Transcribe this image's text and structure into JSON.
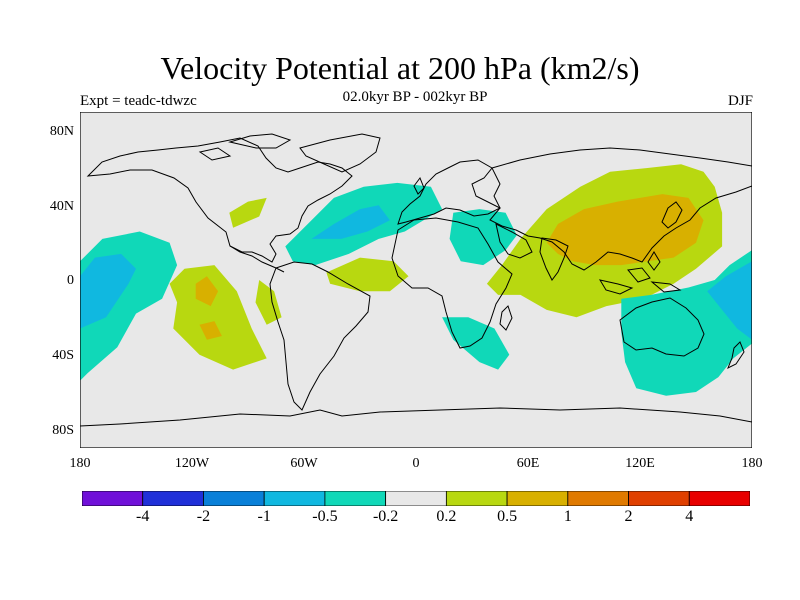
{
  "title": "Velocity Potential at 200 hPa (km2/s)",
  "subtitle": "02.0kyr BP - 002kyr BP",
  "experiment": "Expt = teadc-tdwzc",
  "season": "DJF",
  "map": {
    "projection": "cylindrical-equidistant",
    "lon_range": [
      -180,
      180
    ],
    "lat_range": [
      -90,
      90
    ],
    "background_color": "#e8e8e8",
    "coastline_color": "#000000",
    "lat_ticks": [
      {
        "value": 80,
        "label": "80N"
      },
      {
        "value": 40,
        "label": "40N"
      },
      {
        "value": 0,
        "label": "0"
      },
      {
        "value": -40,
        "label": "40S"
      },
      {
        "value": -80,
        "label": "80S"
      }
    ],
    "lon_ticks": [
      {
        "value": -180,
        "label": "180"
      },
      {
        "value": -120,
        "label": "120W"
      },
      {
        "value": -60,
        "label": "60W"
      },
      {
        "value": 0,
        "label": "0"
      },
      {
        "value": 60,
        "label": "60E"
      },
      {
        "value": 120,
        "label": "120E"
      },
      {
        "value": 180,
        "label": "180"
      }
    ]
  },
  "colorbar": {
    "colors": [
      "#7010d8",
      "#2030d8",
      "#0a80d8",
      "#10b8e0",
      "#10d8b8",
      "#e8e8e8",
      "#b8d810",
      "#d8b000",
      "#e07a00",
      "#e04000",
      "#e80000"
    ],
    "labels": [
      "-4",
      "-2",
      "-1",
      "-0.5",
      "-0.2",
      "0.2",
      "0.5",
      "1",
      "2",
      "4"
    ]
  },
  "chart_data": {
    "type": "heatmap",
    "title": "Velocity Potential at 200 hPa (km2/s)",
    "variable": "velocity potential difference",
    "units": "km2/s",
    "levels": [
      -4,
      -2,
      -1,
      -0.5,
      -0.2,
      0.2,
      0.5,
      1,
      2,
      4
    ],
    "regions": [
      {
        "name": "",
        "class": 4,
        "points": [
          [
            -180,
            10
          ],
          [
            -168,
            22
          ],
          [
            -148,
            26
          ],
          [
            -132,
            20
          ],
          [
            -128,
            8
          ],
          [
            -136,
            -10
          ],
          [
            -150,
            -18
          ],
          [
            -160,
            -36
          ],
          [
            -176,
            -50
          ],
          [
            -180,
            -54
          ]
        ]
      },
      {
        "name": "",
        "class": 3,
        "points": [
          [
            -180,
            2
          ],
          [
            -172,
            12
          ],
          [
            -158,
            14
          ],
          [
            -150,
            6
          ],
          [
            -154,
            -2
          ],
          [
            -166,
            -20
          ],
          [
            -180,
            -26
          ]
        ]
      },
      {
        "name": "",
        "class": 6,
        "points": [
          [
            -132,
            -2
          ],
          [
            -124,
            6
          ],
          [
            -108,
            8
          ],
          [
            -96,
            -6
          ],
          [
            -88,
            -26
          ],
          [
            -80,
            -42
          ],
          [
            -98,
            -48
          ],
          [
            -116,
            -40
          ],
          [
            -130,
            -26
          ],
          [
            -128,
            -12
          ]
        ]
      },
      {
        "name": "",
        "class": 7,
        "points": [
          [
            -118,
            -2
          ],
          [
            -112,
            2
          ],
          [
            -106,
            -6
          ],
          [
            -110,
            -14
          ],
          [
            -118,
            -10
          ]
        ]
      },
      {
        "name": "",
        "class": 7,
        "points": [
          [
            -116,
            -24
          ],
          [
            -108,
            -22
          ],
          [
            -104,
            -30
          ],
          [
            -112,
            -32
          ]
        ]
      },
      {
        "name": "",
        "class": 6,
        "points": [
          [
            -84,
            0
          ],
          [
            -76,
            -6
          ],
          [
            -72,
            -20
          ],
          [
            -80,
            -24
          ],
          [
            -86,
            -12
          ]
        ]
      },
      {
        "name": "",
        "class": 6,
        "points": [
          [
            -100,
            36
          ],
          [
            -90,
            42
          ],
          [
            -80,
            44
          ],
          [
            -84,
            34
          ],
          [
            -98,
            28
          ]
        ]
      },
      {
        "name": "",
        "class": 4,
        "points": [
          [
            -70,
            18
          ],
          [
            -56,
            32
          ],
          [
            -44,
            44
          ],
          [
            -28,
            50
          ],
          [
            -10,
            52
          ],
          [
            8,
            50
          ],
          [
            14,
            38
          ],
          [
            -6,
            26
          ],
          [
            -20,
            22
          ],
          [
            -36,
            14
          ],
          [
            -54,
            8
          ],
          [
            -66,
            10
          ]
        ]
      },
      {
        "name": "",
        "class": 3,
        "points": [
          [
            -56,
            22
          ],
          [
            -44,
            30
          ],
          [
            -30,
            38
          ],
          [
            -20,
            40
          ],
          [
            -14,
            32
          ],
          [
            -26,
            26
          ],
          [
            -40,
            22
          ]
        ]
      },
      {
        "name": "",
        "class": 6,
        "points": [
          [
            -48,
            4
          ],
          [
            -30,
            12
          ],
          [
            -12,
            10
          ],
          [
            -4,
            2
          ],
          [
            -14,
            -6
          ],
          [
            -30,
            -6
          ],
          [
            -46,
            -2
          ]
        ]
      },
      {
        "name": "",
        "class": 4,
        "points": [
          [
            20,
            36
          ],
          [
            34,
            38
          ],
          [
            48,
            36
          ],
          [
            54,
            24
          ],
          [
            48,
            16
          ],
          [
            36,
            8
          ],
          [
            24,
            10
          ],
          [
            18,
            22
          ]
        ]
      },
      {
        "name": "",
        "class": 4,
        "points": [
          [
            14,
            -20
          ],
          [
            28,
            -20
          ],
          [
            42,
            -26
          ],
          [
            50,
            -40
          ],
          [
            44,
            -48
          ],
          [
            34,
            -44
          ],
          [
            20,
            -32
          ]
        ]
      },
      {
        "name": "",
        "class": 6,
        "points": [
          [
            38,
            -2
          ],
          [
            46,
            8
          ],
          [
            56,
            22
          ],
          [
            70,
            38
          ],
          [
            88,
            50
          ],
          [
            104,
            58
          ],
          [
            124,
            60
          ],
          [
            142,
            62
          ],
          [
            154,
            58
          ],
          [
            160,
            50
          ],
          [
            164,
            36
          ],
          [
            164,
            18
          ],
          [
            150,
            6
          ],
          [
            138,
            -2
          ],
          [
            122,
            -10
          ],
          [
            102,
            -14
          ],
          [
            86,
            -20
          ],
          [
            70,
            -16
          ],
          [
            56,
            -8
          ],
          [
            44,
            -8
          ]
        ]
      },
      {
        "name": "",
        "class": 7,
        "points": [
          [
            70,
            20
          ],
          [
            76,
            30
          ],
          [
            90,
            38
          ],
          [
            108,
            42
          ],
          [
            120,
            44
          ],
          [
            132,
            46
          ],
          [
            146,
            44
          ],
          [
            154,
            32
          ],
          [
            150,
            20
          ],
          [
            138,
            12
          ],
          [
            124,
            10
          ],
          [
            110,
            8
          ],
          [
            96,
            8
          ],
          [
            84,
            10
          ],
          [
            76,
            14
          ]
        ]
      },
      {
        "name": "",
        "class": 4,
        "points": [
          [
            110,
            -10
          ],
          [
            126,
            -8
          ],
          [
            146,
            -4
          ],
          [
            160,
            0
          ],
          [
            168,
            8
          ],
          [
            180,
            16
          ],
          [
            180,
            -34
          ],
          [
            170,
            -42
          ],
          [
            162,
            -52
          ],
          [
            150,
            -60
          ],
          [
            134,
            -62
          ],
          [
            118,
            -58
          ],
          [
            112,
            -44
          ],
          [
            110,
            -28
          ]
        ]
      },
      {
        "name": "",
        "class": 3,
        "points": [
          [
            156,
            -6
          ],
          [
            166,
            2
          ],
          [
            180,
            10
          ],
          [
            180,
            -32
          ],
          [
            172,
            -26
          ],
          [
            164,
            -16
          ]
        ]
      }
    ]
  }
}
